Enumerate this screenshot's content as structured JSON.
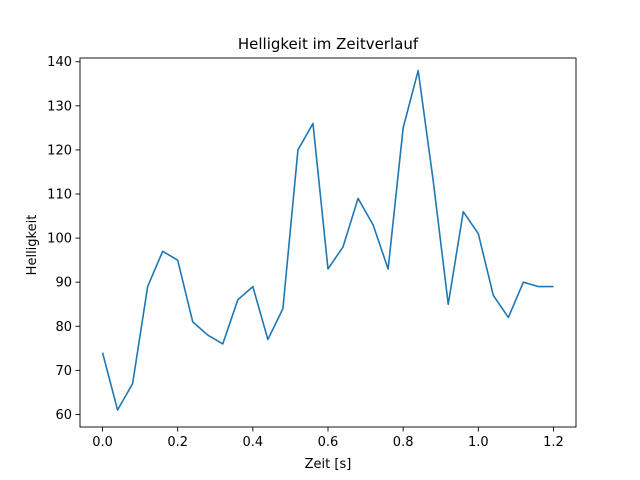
{
  "chart_data": {
    "type": "line",
    "title": "Helligkeit im Zeitverlauf",
    "xlabel": "Zeit [s]",
    "ylabel": "Helligkeit",
    "xlim": [
      -0.06,
      1.26
    ],
    "ylim": [
      57.15,
      140.85
    ],
    "xticks": [
      0.0,
      0.2,
      0.4,
      0.6,
      0.8,
      1.0,
      1.2
    ],
    "xtick_labels": [
      "0.0",
      "0.2",
      "0.4",
      "0.6",
      "0.8",
      "1.0",
      "1.2"
    ],
    "yticks": [
      60,
      70,
      80,
      90,
      100,
      110,
      120,
      130,
      140
    ],
    "ytick_labels": [
      "60",
      "70",
      "80",
      "90",
      "100",
      "110",
      "120",
      "130",
      "140"
    ],
    "grid": false,
    "series": [
      {
        "color": "#1f77b4",
        "x": [
          0.0,
          0.04,
          0.08,
          0.12,
          0.16,
          0.2,
          0.24,
          0.28,
          0.32,
          0.36,
          0.4,
          0.44,
          0.48,
          0.52,
          0.56,
          0.6,
          0.64,
          0.68,
          0.72,
          0.76,
          0.8,
          0.84,
          0.88,
          0.92,
          0.96,
          1.0,
          1.04,
          1.08,
          1.12,
          1.16,
          1.2
        ],
        "y": [
          74,
          61,
          67,
          89,
          97,
          95,
          81,
          78,
          76,
          86,
          89,
          77,
          84,
          120,
          126,
          93,
          98,
          109,
          103,
          93,
          125,
          138,
          113,
          85,
          106,
          101,
          87,
          82,
          90,
          89,
          89
        ]
      }
    ]
  }
}
